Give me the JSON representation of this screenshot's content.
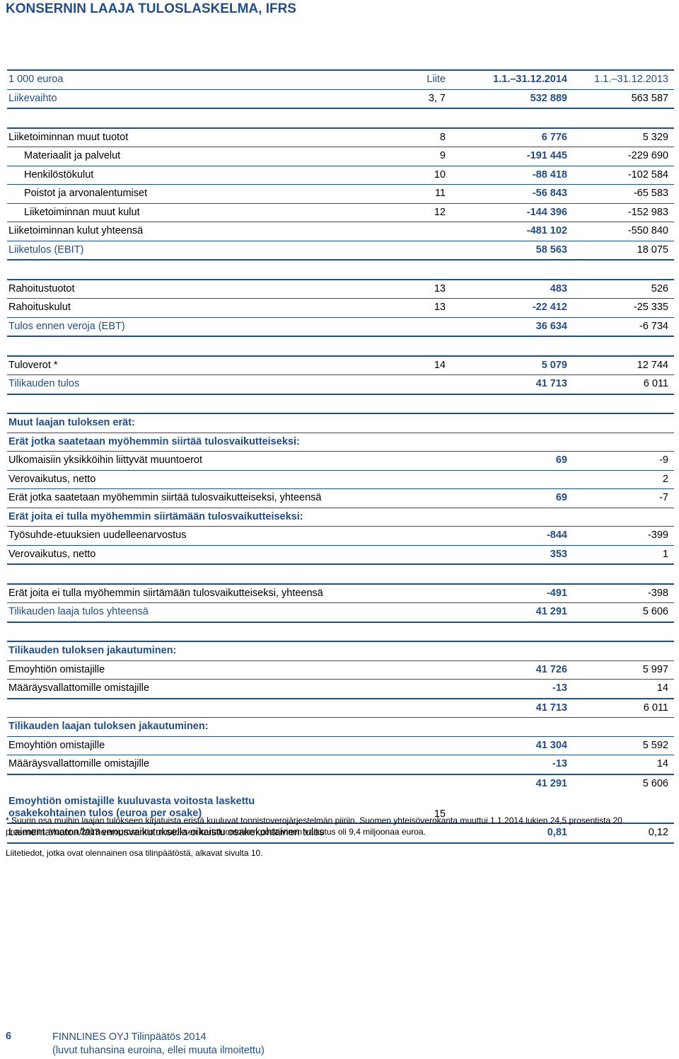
{
  "title": "KONSERNIN LAAJA TULOSLASKELMA, IFRS",
  "header": {
    "unit": "1 000 euroa",
    "note": "Liite",
    "col1": "1.1.–31.12.2014",
    "col2": "1.1.–31.12.2013"
  },
  "rows": {
    "liikevaihto": {
      "label": "Liikevaihto",
      "note": "3, 7",
      "v1": "532 889",
      "v2": "563 587"
    },
    "muut_tuotot": {
      "label": "Liiketoiminnan muut tuotot",
      "note": "8",
      "v1": "6 776",
      "v2": "5 329"
    },
    "materiaalit": {
      "label": "Materiaalit ja palvelut",
      "note": "9",
      "v1": "-191 445",
      "v2": "-229 690"
    },
    "henkilosto": {
      "label": "Henkilöstökulut",
      "note": "10",
      "v1": "-88 418",
      "v2": "-102 584"
    },
    "poistot": {
      "label": "Poistot ja arvonalentumiset",
      "note": "11",
      "v1": "-56 843",
      "v2": "-65 583"
    },
    "muut_kulut": {
      "label": "Liiketoiminnan muut kulut",
      "note": "12",
      "v1": "-144 396",
      "v2": "-152 983"
    },
    "kulut_yht": {
      "label": "Liiketoiminnan kulut yhteensä",
      "note": "",
      "v1": "-481 102",
      "v2": "-550 840"
    },
    "liiketulos": {
      "label": "Liiketulos (EBIT)",
      "note": "",
      "v1": "58 563",
      "v2": "18 075"
    },
    "rah_tuotot": {
      "label": "Rahoitustuotot",
      "note": "13",
      "v1": "483",
      "v2": "526"
    },
    "rah_kulut": {
      "label": "Rahoituskulut",
      "note": "13",
      "v1": "-22 412",
      "v2": "-25 335"
    },
    "ebt": {
      "label": "Tulos ennen veroja (EBT)",
      "note": "",
      "v1": "36 634",
      "v2": "-6 734"
    },
    "tuloverot": {
      "label": "Tuloverot *",
      "note": "14",
      "v1": "5 079",
      "v2": "12 744"
    },
    "tilikauden_tulos": {
      "label": "Tilikauden tulos",
      "note": "",
      "v1": "41 713",
      "v2": "6 011"
    },
    "muut_laajan": {
      "label": "Muut laajan tuloksen erät:"
    },
    "erat_siirtaa": {
      "label": "Erät jotka saatetaan myöhemmin siirtää tulosvaikutteiseksi:"
    },
    "ulkomaisiin": {
      "label": "Ulkomaisiin yksikköihin liittyvät muuntoerot",
      "v1": "69",
      "v2": "-9"
    },
    "verovaikutus1": {
      "label": "Verovaikutus, netto",
      "v1": "",
      "v2": "2"
    },
    "erat_siirtaa_yht": {
      "label": "Erät jotka saatetaan myöhemmin siirtää tulosvaikutteiseksi, yhteensä",
      "v1": "69",
      "v2": "-7"
    },
    "erat_ei_siirreta": {
      "label": "Erät joita ei tulla myöhemmin siirtämään tulosvaikutteiseksi:"
    },
    "tyosuhde": {
      "label": "Työsuhde-etuuksien uudelleenarvostus",
      "v1": "-844",
      "v2": "-399"
    },
    "verovaikutus2": {
      "label": "Verovaikutus, netto",
      "v1": "353",
      "v2": "1"
    },
    "erat_ei_yht": {
      "label": "Erät joita ei tulla myöhemmin siirtämään tulosvaikutteiseksi, yhteensä",
      "v1": "-491",
      "v2": "-398"
    },
    "laaja_tulos": {
      "label": "Tilikauden laaja tulos yhteensä",
      "v1": "41 291",
      "v2": "5 606"
    },
    "jakautuminen": {
      "label": "Tilikauden tuloksen jakautuminen:"
    },
    "emoyhtio1": {
      "label": "Emoyhtiön omistajille",
      "v1": "41 726",
      "v2": "5 997"
    },
    "maarays1": {
      "label": "Määräysvallattomille omistajille",
      "v1": "-13",
      "v2": "14"
    },
    "summa1": {
      "v1": "41 713",
      "v2": "6 011"
    },
    "laajan_jakautuminen": {
      "label": "Tilikauden laajan tuloksen jakautuminen:"
    },
    "emoyhtio2": {
      "label": "Emoyhtiön omistajille",
      "v1": "41 304",
      "v2": "5 592"
    },
    "maarays2": {
      "label": "Määräysvallattomille omistajille",
      "v1": "-13",
      "v2": "14"
    },
    "summa2": {
      "v1": "41 291",
      "v2": "5 606"
    },
    "eps_header": {
      "label": "Emoyhtiön omistajille kuuluvasta voitosta laskettu osakekohtainen tulos (euroa per osake)",
      "note": "15"
    },
    "eps": {
      "label": "Laimentamaton/laimennusvaikutuksella oikaistu osakekohtainen tulos",
      "v1": "0,81",
      "v2": "0,12"
    }
  },
  "footnote1": "* Suurin osa muihin laajan tulokseen kirjatuista eristä kuuluvat tonnistoverojärjestelmän piiriin. Suomen yhteisöverokanta muuttui 1.1.2014 lukien 24,5 prosentista 20 prosenttiin. Vuonna 2013 veroprosentin muutoksen kertaluontoinen positiivinen vaikutus oli 9,4 miljoonaa euroa.",
  "footnote2": "Liitetiedot, jotka ovat olennainen osa tilinpäätöstä, alkavat sivulta 10.",
  "footer": {
    "page": "6",
    "company": "FINNLINES OYJ Tilinpäätös 2014",
    "unit_note": "(luvut tuhansina euroina, ellei muuta ilmoitettu)"
  }
}
